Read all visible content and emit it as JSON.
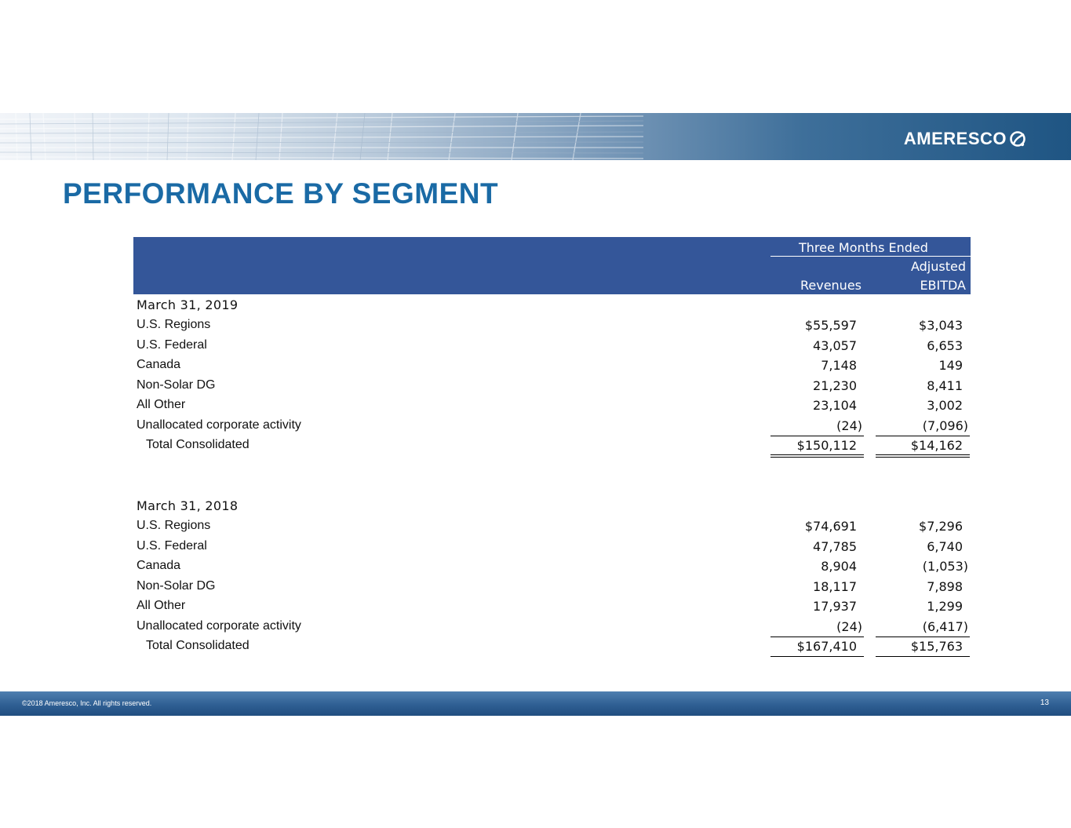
{
  "brand": {
    "logo_text": "AMERESCO",
    "primary_color": "#1a6aa5",
    "header_color": "#345699"
  },
  "title": "PERFORMANCE BY SEGMENT",
  "table": {
    "header": {
      "period": "Three Months Ended",
      "col_revenues": "Revenues",
      "col_ebitda_line1": "Adjusted",
      "col_ebitda_line2": "EBITDA"
    },
    "sections": [
      {
        "label": "March 31, 2019",
        "rows": [
          {
            "segment": "U.S. Regions",
            "revenues": "$55,597",
            "ebitda": "$3,043"
          },
          {
            "segment": "U.S. Federal",
            "revenues": "43,057",
            "ebitda": "6,653"
          },
          {
            "segment": "Canada",
            "revenues": "7,148",
            "ebitda": "149"
          },
          {
            "segment": "Non-Solar DG",
            "revenues": "21,230",
            "ebitda": "8,411"
          },
          {
            "segment": "All Other",
            "revenues": "23,104",
            "ebitda": "3,002"
          },
          {
            "segment": "Unallocated corporate activity",
            "revenues": "(24)",
            "ebitda": "(7,096)"
          }
        ],
        "total": {
          "segment": "Total Consolidated",
          "revenues": "$150,112",
          "ebitda": "$14,162"
        }
      },
      {
        "label": "March 31, 2018",
        "rows": [
          {
            "segment": "U.S. Regions",
            "revenues": "$74,691",
            "ebitda": "$7,296"
          },
          {
            "segment": "U.S. Federal",
            "revenues": "47,785",
            "ebitda": "6,740"
          },
          {
            "segment": "Canada",
            "revenues": "8,904",
            "ebitda": "(1,053)"
          },
          {
            "segment": "Non-Solar DG",
            "revenues": "18,117",
            "ebitda": "7,898"
          },
          {
            "segment": "All Other",
            "revenues": "17,937",
            "ebitda": "1,299"
          },
          {
            "segment": "Unallocated corporate activity",
            "revenues": "(24)",
            "ebitda": "(6,417)"
          }
        ],
        "total": {
          "segment": "Total Consolidated",
          "revenues": "$167,410",
          "ebitda": "$15,763"
        }
      }
    ]
  },
  "footer": {
    "copyright": "©2018 Ameresco, Inc. All rights reserved.",
    "page_number": "13"
  }
}
